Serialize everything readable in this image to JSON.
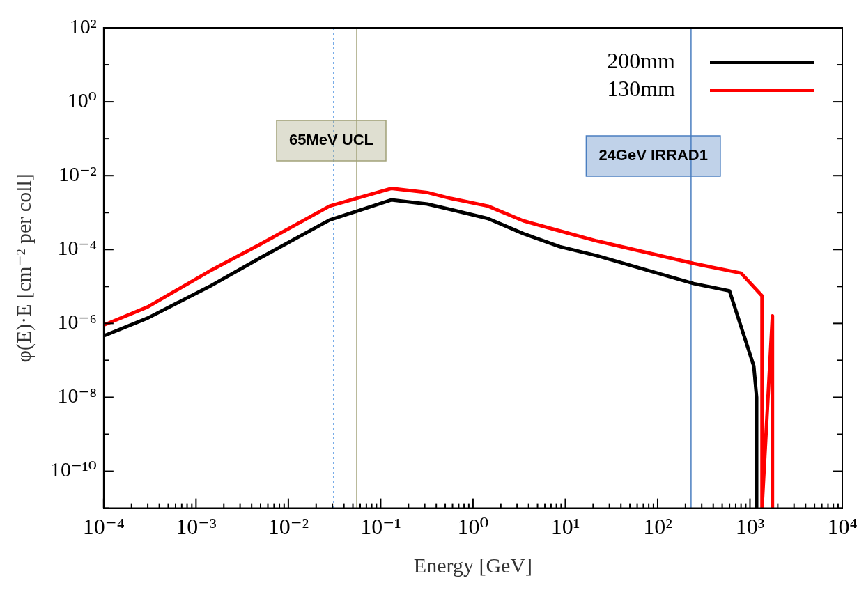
{
  "chart_data": {
    "type": "line",
    "xlabel": "Energy [GeV]",
    "ylabel": "φ(E)·E [cm⁻² per coll]",
    "log": "xy",
    "grid": false,
    "legend": "top right",
    "marker": "none",
    "line_style": "solid",
    "xlim": [
      0.0001,
      10000
    ],
    "ylim": [
      1e-11,
      100
    ],
    "xticks": [
      {
        "value": 0.0001,
        "label": "10⁻⁴"
      },
      {
        "value": 0.0002,
        "label": null
      },
      {
        "value": 0.0003,
        "label": null
      },
      {
        "value": 0.0004,
        "label": null
      },
      {
        "value": 0.0005,
        "label": null
      },
      {
        "value": 0.0006,
        "label": null
      },
      {
        "value": 0.0007,
        "label": null
      },
      {
        "value": 0.0008,
        "label": null
      },
      {
        "value": 0.0009,
        "label": null
      },
      {
        "value": 0.001,
        "label": "10⁻³"
      },
      {
        "value": 0.002,
        "label": null
      },
      {
        "value": 0.003,
        "label": null
      },
      {
        "value": 0.004,
        "label": null
      },
      {
        "value": 0.005,
        "label": null
      },
      {
        "value": 0.006,
        "label": null
      },
      {
        "value": 0.007,
        "label": null
      },
      {
        "value": 0.008,
        "label": null
      },
      {
        "value": 0.009,
        "label": null
      },
      {
        "value": 0.01,
        "label": "10⁻²"
      },
      {
        "value": 0.02,
        "label": null
      },
      {
        "value": 0.03,
        "label": null
      },
      {
        "value": 0.04,
        "label": null
      },
      {
        "value": 0.05,
        "label": null
      },
      {
        "value": 0.06,
        "label": null
      },
      {
        "value": 0.07,
        "label": null
      },
      {
        "value": 0.08,
        "label": null
      },
      {
        "value": 0.09,
        "label": null
      },
      {
        "value": 0.1,
        "label": "10⁻¹"
      },
      {
        "value": 0.2,
        "label": null
      },
      {
        "value": 0.3,
        "label": null
      },
      {
        "value": 0.4,
        "label": null
      },
      {
        "value": 0.5,
        "label": null
      },
      {
        "value": 0.6,
        "label": null
      },
      {
        "value": 0.7,
        "label": null
      },
      {
        "value": 0.8,
        "label": null
      },
      {
        "value": 0.9,
        "label": null
      },
      {
        "value": 1,
        "label": "10⁰"
      },
      {
        "value": 2,
        "label": null
      },
      {
        "value": 3,
        "label": null
      },
      {
        "value": 4,
        "label": null
      },
      {
        "value": 5,
        "label": null
      },
      {
        "value": 6,
        "label": null
      },
      {
        "value": 7,
        "label": null
      },
      {
        "value": 8,
        "label": null
      },
      {
        "value": 9,
        "label": null
      },
      {
        "value": 10,
        "label": "10¹"
      },
      {
        "value": 20,
        "label": null
      },
      {
        "value": 30,
        "label": null
      },
      {
        "value": 40,
        "label": null
      },
      {
        "value": 50,
        "label": null
      },
      {
        "value": 60,
        "label": null
      },
      {
        "value": 70,
        "label": null
      },
      {
        "value": 80,
        "label": null
      },
      {
        "value": 90,
        "label": null
      },
      {
        "value": 100,
        "label": "10²"
      },
      {
        "value": 200,
        "label": null
      },
      {
        "value": 300,
        "label": null
      },
      {
        "value": 400,
        "label": null
      },
      {
        "value": 500,
        "label": null
      },
      {
        "value": 600,
        "label": null
      },
      {
        "value": 700,
        "label": null
      },
      {
        "value": 800,
        "label": null
      },
      {
        "value": 900,
        "label": null
      },
      {
        "value": 1000,
        "label": "10³"
      },
      {
        "value": 2000,
        "label": null
      },
      {
        "value": 3000,
        "label": null
      },
      {
        "value": 4000,
        "label": null
      },
      {
        "value": 5000,
        "label": null
      },
      {
        "value": 6000,
        "label": null
      },
      {
        "value": 7000,
        "label": null
      },
      {
        "value": 8000,
        "label": null
      },
      {
        "value": 9000,
        "label": null
      },
      {
        "value": 10000,
        "label": "10⁴"
      }
    ],
    "yticks": [
      {
        "value": 1e-11,
        "label": null
      },
      {
        "value": 1e-10,
        "label": "10⁻¹⁰"
      },
      {
        "value": 1e-09,
        "label": null
      },
      {
        "value": 1e-08,
        "label": "10⁻⁸"
      },
      {
        "value": 1e-07,
        "label": null
      },
      {
        "value": 1e-06,
        "label": "10⁻⁶"
      },
      {
        "value": 1e-05,
        "label": null
      },
      {
        "value": 0.0001,
        "label": "10⁻⁴"
      },
      {
        "value": 0.001,
        "label": null
      },
      {
        "value": 0.01,
        "label": "10⁻²"
      },
      {
        "value": 0.1,
        "label": null
      },
      {
        "value": 1,
        "label": "10⁰"
      },
      {
        "value": 10,
        "label": null
      },
      {
        "value": 100,
        "label": "10²"
      }
    ],
    "series": [
      {
        "name": "200mm",
        "color": "#000000",
        "x": [
          0.0001,
          0.0003,
          0.0014,
          0.005,
          0.028,
          0.13,
          0.32,
          0.58,
          1.45,
          3.5,
          8.7,
          22,
          245,
          600,
          1100,
          1180,
          1180
        ],
        "values": [
          4.6e-07,
          1.4e-06,
          1e-05,
          6e-05,
          0.00063,
          0.0022,
          0.0017,
          0.0012,
          0.00069,
          0.00027,
          0.00012,
          6.8e-05,
          1.2e-05,
          7.6e-06,
          7e-08,
          1e-08,
          1e-11
        ]
      },
      {
        "name": "130mm",
        "color": "#ff0000",
        "x": [
          0.0001,
          0.0003,
          0.0014,
          0.005,
          0.028,
          0.13,
          0.32,
          0.58,
          1.45,
          3.5,
          8.7,
          22,
          245,
          800,
          1350,
          1350,
          1750,
          1750
        ],
        "values": [
          9e-07,
          2.8e-06,
          2.6e-05,
          0.00014,
          0.0015,
          0.0045,
          0.0035,
          0.0024,
          0.0015,
          0.0006,
          0.00032,
          0.00017,
          4.2e-05,
          2.3e-05,
          5.6e-06,
          1e-11,
          1.6e-06,
          1e-11
        ]
      }
    ],
    "ref_lines": [
      {
        "axis": "x",
        "value": 0.055,
        "label": "65MeV UCL",
        "color": "#a3a37a",
        "line_style": "solid"
      },
      {
        "axis": "x",
        "value": 230,
        "label": "24GeV IRRAD1",
        "color": "#4a7ec0",
        "line_style": "solid"
      },
      {
        "axis": "x",
        "value": 0.031,
        "color": "#4a90e0",
        "line_style": "dotted"
      }
    ]
  }
}
